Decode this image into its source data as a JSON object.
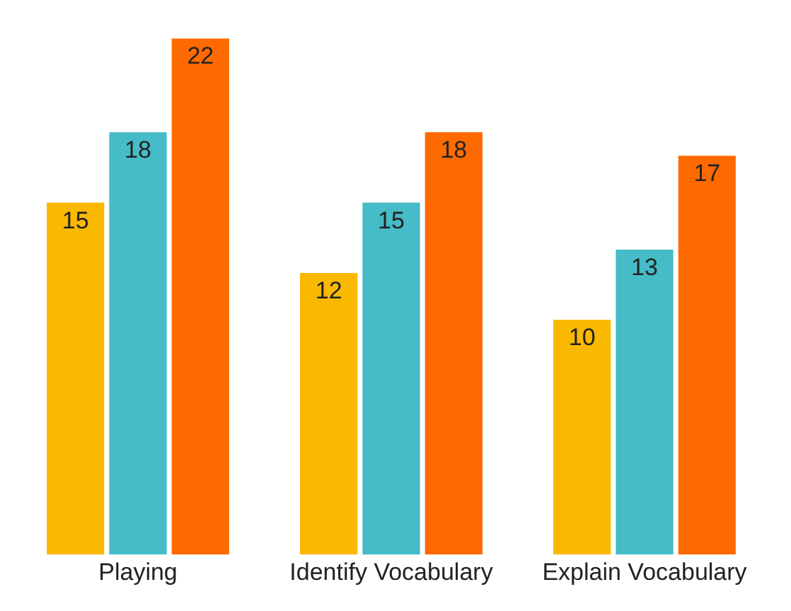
{
  "chart_data": {
    "type": "bar",
    "categories": [
      "Playing",
      "Identify Vocabulary",
      "Explain Vocabulary"
    ],
    "series": [
      {
        "color": "#f9b900",
        "values": [
          15,
          12,
          10
        ]
      },
      {
        "color": "#45bcc7",
        "values": [
          18,
          15,
          13
        ]
      },
      {
        "color": "#ff6a00",
        "values": [
          22,
          18,
          17
        ]
      }
    ],
    "data_labels": true
  }
}
